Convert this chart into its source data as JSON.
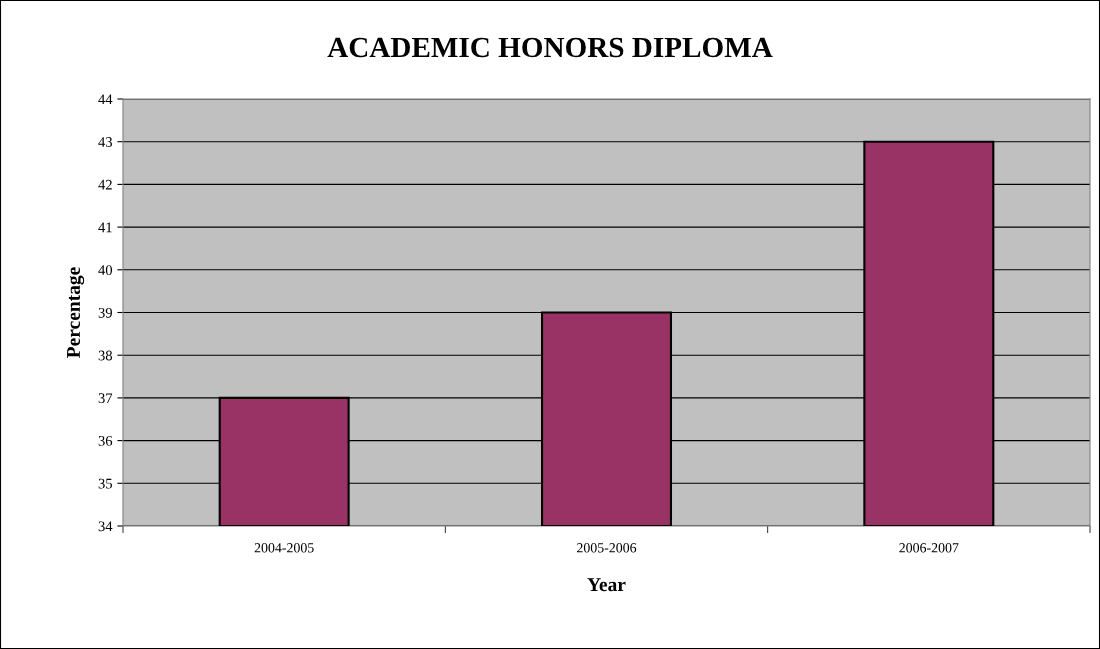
{
  "chart_data": {
    "type": "bar",
    "title": "ACADEMIC HONORS DIPLOMA",
    "xlabel": "Year",
    "ylabel": "Percentage",
    "categories": [
      "2004-2005",
      "2005-2006",
      "2006-2007"
    ],
    "values": [
      37,
      39,
      43
    ],
    "color": "#993366",
    "ylim": [
      34,
      44
    ],
    "yticks": [
      34,
      35,
      36,
      37,
      38,
      39,
      40,
      41,
      42,
      43,
      44
    ],
    "grid": "y",
    "legend": false
  }
}
